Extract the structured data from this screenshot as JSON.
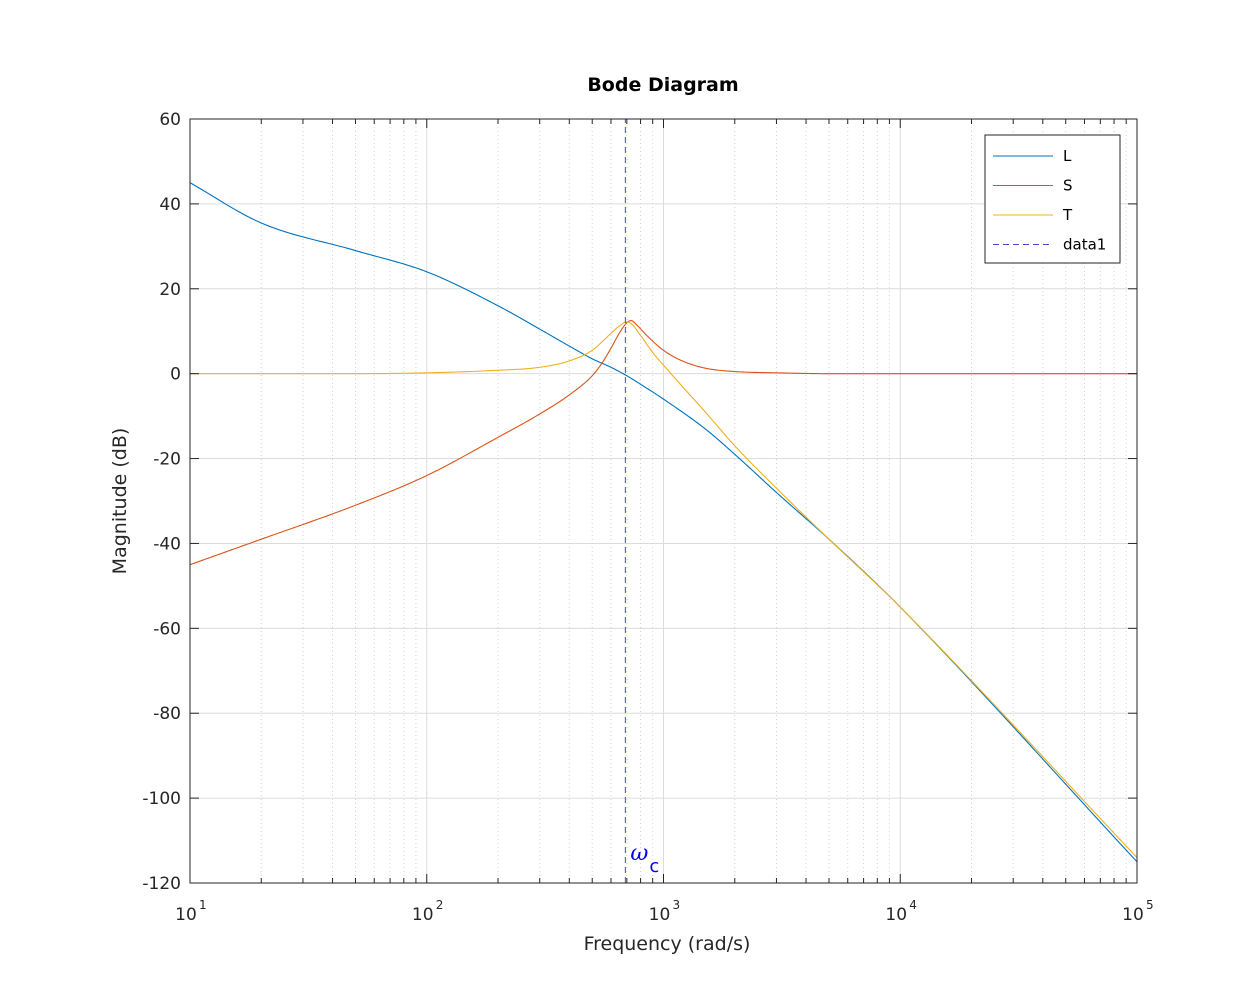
{
  "chart_data": {
    "type": "line",
    "title": "Bode Diagram",
    "xlabel": "Frequency  (rad/s)",
    "ylabel": "Magnitude (dB)",
    "xscale": "log",
    "xlim": [
      10,
      100000
    ],
    "ylim": [
      -120,
      60
    ],
    "x_ticks": [
      {
        "base": "10",
        "exp": "1"
      },
      {
        "base": "10",
        "exp": "2"
      },
      {
        "base": "10",
        "exp": "3"
      },
      {
        "base": "10",
        "exp": "4"
      },
      {
        "base": "10",
        "exp": "5"
      }
    ],
    "y_ticks": [
      "-120",
      "-100",
      "-80",
      "-60",
      "-40",
      "-20",
      "0",
      "20",
      "40",
      "60"
    ],
    "grid": true,
    "legend": "top-right",
    "series": [
      {
        "name": "L",
        "color": "#0072BD",
        "style": "solid",
        "x": [
          10,
          20,
          50,
          100,
          200,
          300,
          400,
          500,
          600,
          700,
          800,
          1000,
          1500,
          2000,
          3000,
          5000,
          10000,
          100000
        ],
        "y": [
          45,
          35.5,
          29,
          24,
          16,
          10.5,
          6.5,
          3.5,
          1.5,
          -0.5,
          -2.5,
          -6,
          -13,
          -19,
          -28,
          -39,
          -55,
          -115
        ]
      },
      {
        "name": "S",
        "color": "#D95319",
        "style": "solid",
        "x": [
          10,
          20,
          50,
          100,
          200,
          300,
          400,
          500,
          550,
          600,
          650,
          700,
          730,
          770,
          850,
          1000,
          1200,
          1500,
          2000,
          3000,
          5000,
          10000,
          100000
        ],
        "y": [
          -45,
          -39,
          -31,
          -24,
          -15,
          -9.5,
          -5,
          -0.5,
          2.5,
          6,
          9.5,
          12,
          12.5,
          11.5,
          9,
          5.5,
          3,
          1.3,
          0.5,
          0.2,
          0,
          0,
          0
        ]
      },
      {
        "name": "T",
        "color": "#EDB120",
        "style": "solid",
        "x": [
          10,
          50,
          100,
          200,
          300,
          400,
          500,
          550,
          600,
          650,
          700,
          740,
          800,
          900,
          1000,
          1200,
          1500,
          2000,
          3000,
          5000,
          10000,
          100000
        ],
        "y": [
          0,
          0,
          0.2,
          0.8,
          1.5,
          3,
          5.5,
          7.5,
          9.5,
          11.2,
          12.2,
          11.5,
          9,
          5,
          2,
          -3,
          -9,
          -17,
          -27,
          -39,
          -55,
          -114
        ]
      },
      {
        "name": "data1",
        "color": "#4646D2",
        "style": "dashed",
        "x": [
          690,
          690
        ],
        "y": [
          -120,
          60
        ]
      }
    ],
    "annotations": [
      {
        "text": "ω",
        "subscript": "c",
        "x": 690,
        "y": -115,
        "color": "#0000FF"
      }
    ]
  }
}
